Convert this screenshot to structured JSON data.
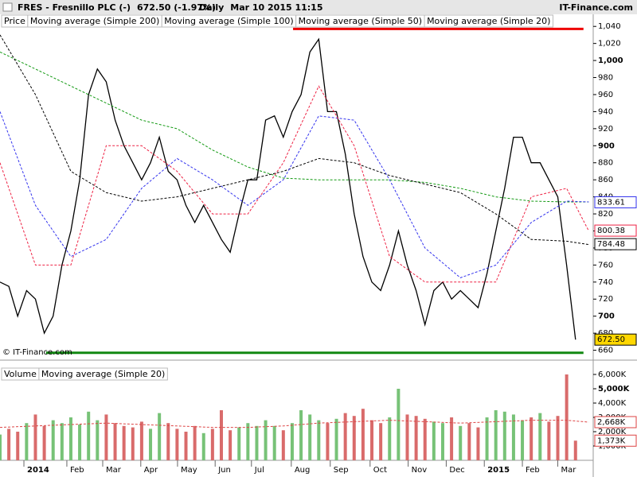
{
  "header": {
    "symbol": "FRES - Fresnillo PLC (-)",
    "quote": "672.50 (-1.97%)",
    "interval": "Daily",
    "datetime": "Mar 10 2015 11:15",
    "source": "IT-Finance.com"
  },
  "chart_data": [
    {
      "type": "line",
      "copyright": "© IT-Finance.com",
      "xlim": [
        0,
        67
      ],
      "ylim": [
        654,
        1043
      ],
      "yticks": [
        660,
        680,
        700,
        720,
        740,
        760,
        780,
        800,
        820,
        840,
        860,
        880,
        900,
        920,
        940,
        960,
        980,
        {
          "value": 1000,
          "label": "1,000"
        },
        {
          "value": 1020,
          "label": "1,020"
        },
        {
          "value": 1040,
          "label": "1,040"
        }
      ],
      "series": [
        {
          "name": "Price",
          "color": "#000000",
          "x": [
            0,
            1,
            2,
            3,
            4,
            5,
            6,
            7,
            8,
            9,
            10,
            11,
            12,
            13,
            14,
            15,
            16,
            17,
            18,
            19,
            20,
            21,
            22,
            23,
            24,
            25,
            26,
            27,
            28,
            29,
            30,
            31,
            32,
            33,
            34,
            35,
            36,
            37,
            38,
            39,
            40,
            41,
            42,
            43,
            44,
            45,
            46,
            47,
            48,
            49,
            50,
            51,
            52,
            53,
            54,
            55,
            56,
            57,
            58,
            59,
            60,
            61,
            62,
            63,
            64,
            65
          ],
          "values": [
            740,
            735,
            700,
            730,
            720,
            680,
            700,
            760,
            800,
            860,
            960,
            990,
            975,
            930,
            900,
            880,
            860,
            880,
            910,
            870,
            860,
            830,
            810,
            830,
            810,
            790,
            775,
            820,
            860,
            860,
            930,
            935,
            910,
            940,
            960,
            1010,
            1025,
            940,
            940,
            890,
            820,
            770,
            740,
            730,
            760,
            800,
            760,
            730,
            690,
            730,
            740,
            720,
            730,
            720,
            710,
            750,
            800,
            850,
            910,
            910,
            880,
            880,
            860,
            840,
            760,
            672.5
          ]
        },
        {
          "name": "Moving average (Simple 200)",
          "color": "#119911",
          "x": [
            0,
            4,
            8,
            12,
            16,
            20,
            24,
            28,
            32,
            36,
            40,
            44,
            48,
            52,
            56,
            60,
            64,
            66.5
          ],
          "values": [
            1010,
            990,
            970,
            950,
            930,
            920,
            895,
            875,
            862,
            860,
            860,
            860,
            857,
            850,
            840,
            835,
            834,
            834
          ]
        },
        {
          "name": "Moving average (Simple 100)",
          "color": "#000000",
          "x": [
            0,
            4,
            8,
            12,
            16,
            20,
            24,
            28,
            32,
            36,
            40,
            44,
            48,
            52,
            56,
            60,
            64,
            66.5
          ],
          "values": [
            1030,
            960,
            870,
            845,
            835,
            840,
            850,
            860,
            870,
            885,
            880,
            865,
            855,
            845,
            820,
            790,
            788,
            784
          ]
        },
        {
          "name": "Moving average (Simple 50)",
          "color": "#3333ee",
          "x": [
            0,
            4,
            8,
            12,
            16,
            20,
            24,
            28,
            32,
            36,
            40,
            44,
            48,
            52,
            56,
            60,
            64,
            66.5
          ],
          "values": [
            940,
            830,
            770,
            790,
            850,
            885,
            860,
            830,
            860,
            935,
            930,
            860,
            780,
            745,
            760,
            810,
            835,
            834
          ]
        },
        {
          "name": "Moving average (Simple 20)",
          "color": "#ee2244",
          "x": [
            0,
            4,
            8,
            12,
            16,
            20,
            24,
            28,
            32,
            36,
            40,
            44,
            48,
            52,
            56,
            60,
            64,
            66.5
          ],
          "values": [
            880,
            760,
            760,
            900,
            900,
            870,
            820,
            820,
            880,
            970,
            900,
            770,
            740,
            740,
            740,
            840,
            850,
            800
          ]
        }
      ],
      "markers": [
        {
          "value": 833.61,
          "color": "#3333ee"
        },
        {
          "value": 800.38,
          "color": "#ee2244"
        },
        {
          "value": 784.48,
          "color": "#000000"
        },
        {
          "value": 672.5,
          "label": "672.50",
          "color": "#ffd700"
        }
      ],
      "hlines": [
        {
          "value": 1037,
          "color": "#ee0000",
          "x": [
            33.1,
            65.9
          ]
        },
        {
          "value": 657,
          "color": "#118811",
          "x": [
            5.2,
            65.9
          ]
        }
      ]
    },
    {
      "type": "bar",
      "xlim": [
        0,
        67
      ],
      "ylim": [
        0,
        6500
      ],
      "yticks": [
        {
          "value": 1000,
          "label": "1,000K"
        },
        {
          "value": 2000,
          "label": "2,000K"
        },
        {
          "value": 3000,
          "label": "3,000K"
        },
        {
          "value": 4000,
          "label": "4,000K"
        },
        {
          "value": 5000,
          "label": "5,000K"
        },
        {
          "value": 6000,
          "label": "6,000K"
        }
      ],
      "xticks": [
        {
          "value": 2.7,
          "label": "2014"
        },
        {
          "value": 7.55,
          "label": "Feb"
        },
        {
          "value": 11.6,
          "label": "Mar"
        },
        {
          "value": 15.9,
          "label": "Apr"
        },
        {
          "value": 20.05,
          "label": "May"
        },
        {
          "value": 24.3,
          "label": "Jun"
        },
        {
          "value": 28.4,
          "label": "Jul"
        },
        {
          "value": 32.9,
          "label": "Aug"
        },
        {
          "value": 37.3,
          "label": "Sep"
        },
        {
          "value": 41.8,
          "label": "Oct"
        },
        {
          "value": 46.1,
          "label": "Nov"
        },
        {
          "value": 50.4,
          "label": "Dec"
        },
        {
          "value": 54.7,
          "label": "2015"
        },
        {
          "value": 59.0,
          "label": "Feb"
        },
        {
          "value": 63.0,
          "label": "Mar"
        }
      ],
      "series": [
        {
          "name": "Volume",
          "color": "#77c277",
          "down_color": "#d96b6b",
          "x": [
            0,
            1,
            2,
            3,
            4,
            5,
            6,
            7,
            8,
            9,
            10,
            11,
            12,
            13,
            14,
            15,
            16,
            17,
            18,
            19,
            20,
            21,
            22,
            23,
            24,
            25,
            26,
            27,
            28,
            29,
            30,
            31,
            32,
            33,
            34,
            35,
            36,
            37,
            38,
            39,
            40,
            41,
            42,
            43,
            44,
            45,
            46,
            47,
            48,
            49,
            50,
            51,
            52,
            53,
            54,
            55,
            56,
            57,
            58,
            59,
            60,
            61,
            62,
            63,
            64,
            65
          ],
          "values": [
            1800,
            2200,
            2000,
            2600,
            3200,
            2400,
            2800,
            2600,
            3000,
            2500,
            3400,
            2800,
            3200,
            2600,
            2400,
            2300,
            2700,
            2200,
            3300,
            2600,
            2200,
            2000,
            2400,
            1900,
            2200,
            3500,
            2100,
            2300,
            2600,
            2400,
            2800,
            2400,
            2100,
            2600,
            3500,
            3200,
            2800,
            2600,
            2900,
            3300,
            3100,
            3600,
            2800,
            2600,
            3000,
            5000,
            3200,
            3100,
            2900,
            2700,
            2600,
            3000,
            2400,
            2600,
            2300,
            3000,
            3500,
            3400,
            3200,
            2800,
            3000,
            3300,
            2700,
            3100,
            6000,
            1373
          ]
        },
        {
          "name": "Moving average (Simple 20)",
          "color": "#dd4444",
          "x": [
            0,
            4,
            8,
            12,
            16,
            20,
            24,
            28,
            32,
            36,
            40,
            44,
            48,
            52,
            56,
            60,
            64,
            66.5
          ],
          "values": [
            2300,
            2400,
            2500,
            2600,
            2500,
            2400,
            2300,
            2300,
            2400,
            2600,
            2700,
            2800,
            2700,
            2600,
            2700,
            2800,
            2800,
            2668
          ]
        }
      ],
      "markers": [
        {
          "value": 2668,
          "label": "2,668K",
          "color": "#dd4444"
        },
        {
          "value": 1373,
          "label": "1,373K",
          "color": "#dd4444"
        }
      ]
    }
  ]
}
